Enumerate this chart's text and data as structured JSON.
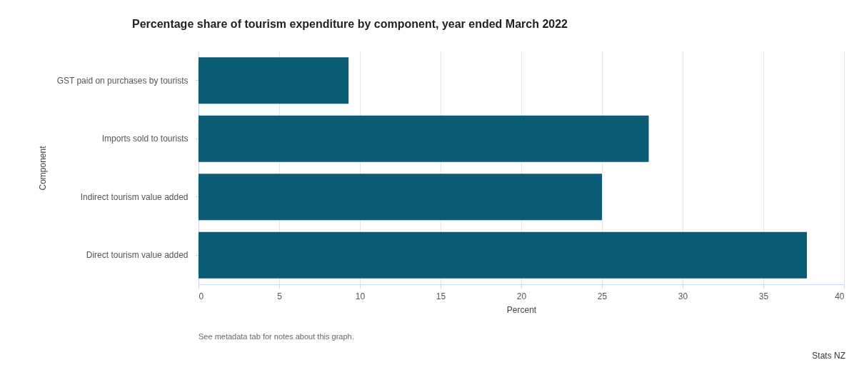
{
  "chart_data": {
    "type": "bar",
    "orientation": "horizontal",
    "title": "Percentage share of tourism expenditure by component, year ended March 2022",
    "xlabel": "Percent",
    "ylabel": "Component",
    "categories": [
      "GST paid on purchases by tourists",
      "Imports sold to tourists",
      "Indirect tourism value added",
      "Direct tourism value added"
    ],
    "values": [
      9.3,
      27.9,
      25.0,
      37.7
    ],
    "color": "#0b5c75",
    "xlim": [
      0,
      40
    ],
    "xticks": [
      0,
      5,
      10,
      15,
      20,
      25,
      30,
      35,
      40
    ],
    "grid": "x",
    "annotations": [
      "See metadata tab for notes about this graph.",
      "Stats NZ"
    ]
  }
}
